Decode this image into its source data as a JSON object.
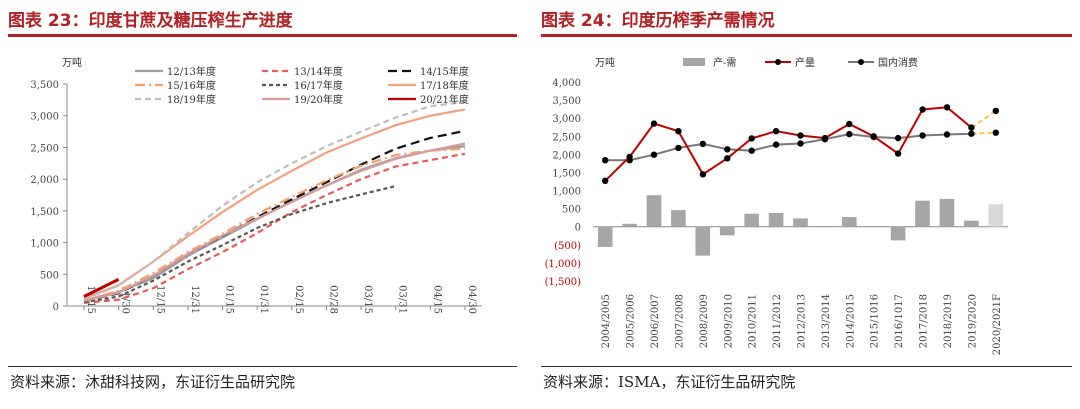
{
  "left": {
    "title": "图表 23：印度甘蔗及糖压榨生产进度",
    "source": "资料来源：沐甜科技网，东证衍生品研究院",
    "chart_data": {
      "type": "line",
      "ylabel": "万吨",
      "ylim": [
        0,
        3500
      ],
      "yticks": [
        "0",
        "500",
        "1,000",
        "1,500",
        "2,000",
        "2,500",
        "3,000",
        "3,500"
      ],
      "categories": [
        "11/15",
        "11/30",
        "12/15",
        "12/31",
        "01/15",
        "01/31",
        "02/15",
        "02/28",
        "03/15",
        "03/31",
        "04/15",
        "04/30"
      ],
      "legend_placement": "top",
      "series": [
        {
          "name": "12/13年度",
          "color": "#9e9e9e",
          "dash": "solid",
          "values": [
            90,
            220,
            440,
            790,
            1080,
            1370,
            1650,
            1900,
            2150,
            2330,
            2450,
            2520
          ]
        },
        {
          "name": "13/14年度",
          "color": "#e55b5b",
          "dash": "dash",
          "values": [
            50,
            100,
            280,
            580,
            850,
            1150,
            1480,
            1750,
            2000,
            2200,
            2300,
            2400
          ]
        },
        {
          "name": "14/15年度",
          "color": "#111111",
          "dash": "longdash",
          "values": [
            80,
            200,
            480,
            820,
            1100,
            1400,
            1680,
            1950,
            2230,
            2480,
            2650,
            2760
          ]
        },
        {
          "name": "15/16年度",
          "color": "#f2a26b",
          "dash": "dashdot",
          "values": [
            90,
            240,
            520,
            850,
            1140,
            1450,
            1720,
            1980,
            2210,
            2380,
            2450,
            2480
          ]
        },
        {
          "name": "16/17年度",
          "color": "#555555",
          "dash": "shortdash",
          "values": [
            60,
            150,
            400,
            700,
            960,
            1230,
            1450,
            1620,
            1760,
            1890,
            null,
            null
          ]
        },
        {
          "name": "17/18年度",
          "color": "#f4a07e",
          "dash": "solid",
          "values": [
            120,
            330,
            700,
            1100,
            1480,
            1830,
            2130,
            2420,
            2640,
            2850,
            3000,
            3100
          ]
        },
        {
          "name": "18/19年度",
          "color": "#bdbdbd",
          "dash": "dash",
          "values": [
            110,
            320,
            700,
            1150,
            1580,
            1950,
            2250,
            2520,
            2750,
            2970,
            3150,
            3220
          ]
        },
        {
          "name": "19/20年度",
          "color": "#d89a9a",
          "dash": "solid",
          "values": [
            80,
            210,
            480,
            820,
            1110,
            1380,
            1640,
            1900,
            2130,
            2320,
            2450,
            2560
          ]
        },
        {
          "name": "20/21年度",
          "color": "#c00000",
          "dash": "solid",
          "values": [
            150,
            420,
            null,
            null,
            null,
            null,
            null,
            null,
            null,
            null,
            null,
            null
          ]
        }
      ]
    }
  },
  "right": {
    "title": "图表 24：印度历榨季产需情况",
    "source": "资料来源：ISMA，东证衍生品研究院",
    "chart_data": {
      "type": "bar+line",
      "ylabel": "万吨",
      "ylim": [
        -1500,
        4000
      ],
      "yticks": [
        "(1,500)",
        "(1,000)",
        "(500)",
        "0",
        "500",
        "1,000",
        "1,500",
        "2,000",
        "2,500",
        "3,000",
        "3,500",
        "4,000"
      ],
      "categories": [
        "2004/2005",
        "2005/2006",
        "2006/2007",
        "2007/2008",
        "2008/2009",
        "2009/2010",
        "2010/2011",
        "2011/2012",
        "2012/2013",
        "2013/2014",
        "2014/2015",
        "2015/1016",
        "2016/1017",
        "2017/2018",
        "2018/2019",
        "2019/2020",
        "2020/2021F"
      ],
      "legend_placement": "top",
      "series": [
        {
          "name": "产-需",
          "type": "bar",
          "color": "#a6a6a6",
          "values": [
            -560,
            80,
            870,
            460,
            -800,
            -240,
            360,
            380,
            230,
            20,
            270,
            20,
            -380,
            720,
            770,
            170,
            620
          ]
        },
        {
          "name": "产量",
          "type": "line",
          "color": "#c00000",
          "values": [
            1270,
            1930,
            2850,
            2640,
            1450,
            1890,
            2440,
            2640,
            2520,
            2450,
            2840,
            2500,
            2020,
            3240,
            3300,
            2740,
            3200
          ]
        },
        {
          "name": "国内消费",
          "type": "line",
          "color": "#777777",
          "values": [
            1840,
            1840,
            1990,
            2180,
            2290,
            2140,
            2100,
            2270,
            2300,
            2420,
            2560,
            2480,
            2450,
            2520,
            2550,
            2570,
            2600
          ]
        }
      ]
    }
  }
}
